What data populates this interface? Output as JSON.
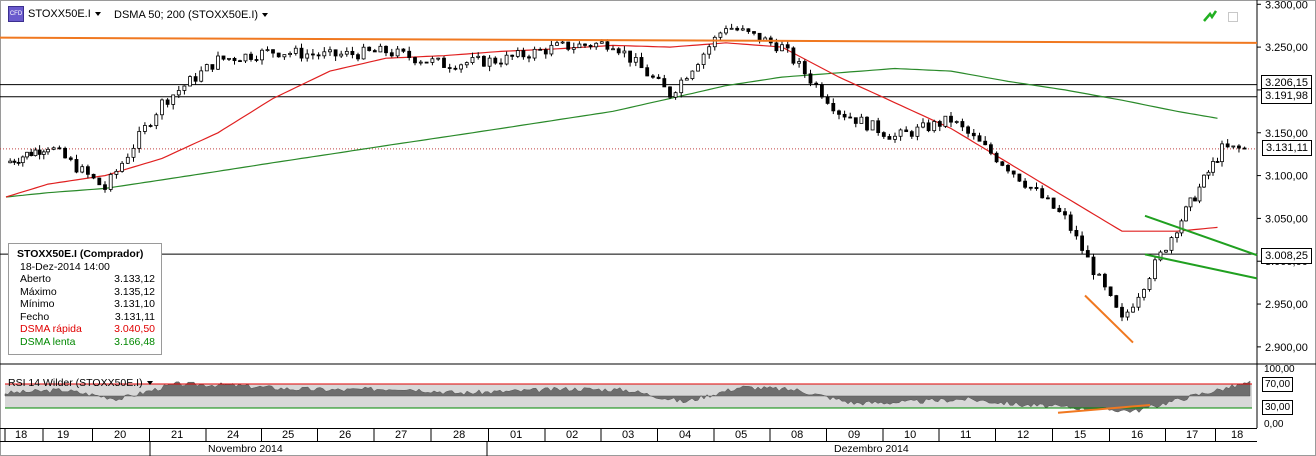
{
  "header": {
    "icon_text": "CFD",
    "instrument": "STOXX50E.I",
    "indicator": "DSMA 50; 200 (STOXX50E.I)"
  },
  "info": {
    "title": "STOXX50E.I (Comprador)",
    "timestamp": "18-Dez-2014 14:00",
    "rows": [
      {
        "label": "Aberto",
        "value": "3.133,12"
      },
      {
        "label": "Máximo",
        "value": "3.135,12"
      },
      {
        "label": "Mínimo",
        "value": "3.131,10"
      },
      {
        "label": "Fecho",
        "value": "3.131,11"
      },
      {
        "label": "DSMA rápida",
        "value": "3.040,50"
      },
      {
        "label": "DSMA lenta",
        "value": "3.166,48"
      }
    ]
  },
  "price_labels": [
    "3.206,15",
    "3.191,98",
    "3.131,11",
    "3.008,25"
  ],
  "rsi": {
    "title": "RSI 14 Wilder (STOXX50E.I)",
    "level_labels": [
      "70,00",
      "30,00"
    ],
    "axis_ticks": [
      "100,00",
      "0,00"
    ]
  },
  "colors": {
    "bull": "#ffffff",
    "bear": "#000000",
    "fast_sma": "#e02020",
    "slow_sma": "#2a8a2a",
    "resistance": "#f07820",
    "trend_green": "#20a020",
    "rsi_fill": "#6e6e6e",
    "rsi_band": "#d8d8d8"
  },
  "chart_data": {
    "type": "candlestick",
    "instrument": "STOXX50E.I",
    "ylim": [
      2880,
      3305
    ],
    "y_ticks": [
      3300,
      3250,
      3200,
      3150,
      3100,
      3050,
      3000,
      2950,
      2900
    ],
    "y_tick_labels": [
      "3.300,00",
      "3.250,00",
      "3.200,00",
      "3.150,00",
      "3.100,00",
      "3.050,00",
      "3.000,00",
      "2.950,00",
      "2.900,00"
    ],
    "horizontal_lines": [
      3206.15,
      3191.98,
      3008.25
    ],
    "current_price_line": 3131.11,
    "x_labels": [
      "18",
      "19",
      "20",
      "21",
      "24",
      "25",
      "26",
      "27",
      "28",
      "01",
      "02",
      "03",
      "04",
      "05",
      "08",
      "09",
      "10",
      "11",
      "12",
      "15",
      "16",
      "17",
      "18"
    ],
    "month_labels": [
      {
        "label": "Novembro 2014",
        "at": "24"
      },
      {
        "label": "Dezembro 2014",
        "at": "08"
      }
    ],
    "daily_closes": [
      3115,
      3135,
      3085,
      3185,
      3235,
      3245,
      3240,
      3245,
      3230,
      3235,
      3250,
      3255,
      3195,
      3275,
      3250,
      3175,
      3145,
      3165,
      3110,
      3050,
      2930,
      3040,
      3131
    ],
    "fast_sma": [
      3075,
      3090,
      3100,
      3120,
      3150,
      3190,
      3222,
      3237,
      3240,
      3245,
      3248,
      3252,
      3250,
      3255,
      3250,
      3215,
      3185,
      3155,
      3115,
      3075,
      3035,
      3035,
      3040
    ],
    "slow_sma": [
      3075,
      3080,
      3085,
      3095,
      3105,
      3115,
      3125,
      3135,
      3145,
      3155,
      3165,
      3175,
      3190,
      3205,
      3215,
      3220,
      3225,
      3222,
      3210,
      3200,
      3188,
      3175,
      3166
    ],
    "resistance_trendline": [
      {
        "x": "18",
        "y": 3261
      },
      {
        "x": "18",
        "y": 3255,
        "end": true
      }
    ],
    "rsi_levels": [
      70,
      30
    ],
    "rsi_values": [
      55,
      60,
      45,
      70,
      68,
      62,
      60,
      63,
      55,
      58,
      62,
      60,
      40,
      65,
      60,
      38,
      40,
      45,
      35,
      30,
      25,
      50,
      72
    ]
  }
}
